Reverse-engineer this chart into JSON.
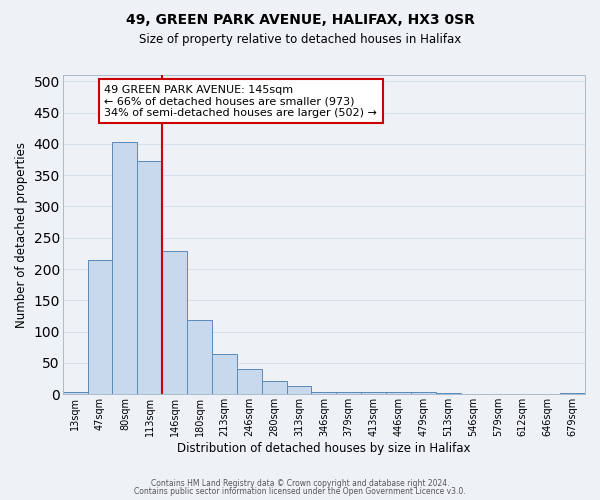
{
  "title": "49, GREEN PARK AVENUE, HALIFAX, HX3 0SR",
  "subtitle": "Size of property relative to detached houses in Halifax",
  "xlabel": "Distribution of detached houses by size in Halifax",
  "ylabel": "Number of detached properties",
  "bar_labels": [
    "13sqm",
    "47sqm",
    "80sqm",
    "113sqm",
    "146sqm",
    "180sqm",
    "213sqm",
    "246sqm",
    "280sqm",
    "313sqm",
    "346sqm",
    "379sqm",
    "413sqm",
    "446sqm",
    "479sqm",
    "513sqm",
    "546sqm",
    "579sqm",
    "612sqm",
    "646sqm",
    "679sqm"
  ],
  "bar_heights": [
    4,
    215,
    403,
    372,
    229,
    119,
    65,
    40,
    21,
    14,
    3,
    3,
    3,
    3,
    3,
    2,
    0,
    0,
    0,
    0,
    2
  ],
  "bar_color": "#c9d9ed",
  "bar_edge_color": "#5a8ab8",
  "background_color": "#eef2f7",
  "grid_color": "#d8e0eb",
  "vline_color": "#cc0000",
  "ylim": [
    0,
    510
  ],
  "yticks": [
    0,
    50,
    100,
    150,
    200,
    250,
    300,
    350,
    400,
    450,
    500
  ],
  "annotation_title": "49 GREEN PARK AVENUE: 145sqm",
  "annotation_line1": "← 66% of detached houses are smaller (973)",
  "annotation_line2": "34% of semi-detached houses are larger (502) →",
  "annotation_box_color": "#ffffff",
  "annotation_box_edge": "#cc0000",
  "footer_line1": "Contains HM Land Registry data © Crown copyright and database right 2024.",
  "footer_line2": "Contains public sector information licensed under the Open Government Licence v3.0."
}
